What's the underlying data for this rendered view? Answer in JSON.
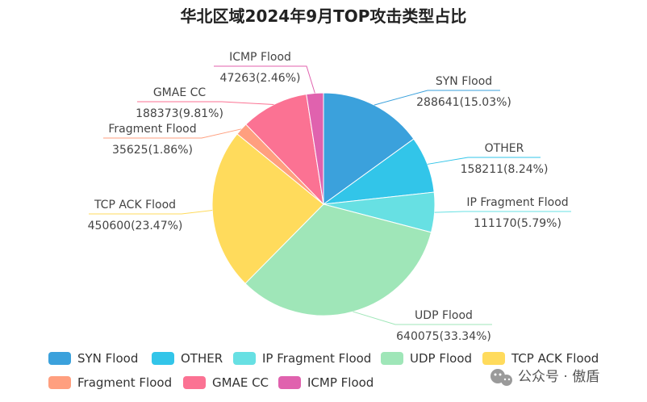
{
  "chart_data": {
    "type": "pie",
    "title": "华北区域2024年9月TOP攻击类型占比",
    "slices": [
      {
        "name": "SYN Flood",
        "value": 288641,
        "label": "288641(15.03%)",
        "color": "#3ba1dc"
      },
      {
        "name": "OTHER",
        "value": 158211,
        "label": "158211(8.24%)",
        "color": "#32c5e9"
      },
      {
        "name": "IP Fragment Flood",
        "value": 111170,
        "label": "111170(5.79%)",
        "color": "#67e0e3"
      },
      {
        "name": "UDP Flood",
        "value": 640075,
        "label": "640075(33.34%)",
        "color": "#9fe6b8"
      },
      {
        "name": "TCP ACK Flood",
        "value": 450600,
        "label": "450600(23.47%)",
        "color": "#ffdb5c"
      },
      {
        "name": "Fragment Flood",
        "value": 35625,
        "label": "35625(1.86%)",
        "color": "#ff9f7f"
      },
      {
        "name": "GMAE CC",
        "value": 188373,
        "label": "188373(9.81%)",
        "color": "#fb7293"
      },
      {
        "name": "ICMP Flood",
        "value": 47263,
        "label": "47263(2.46%)",
        "color": "#e062ae"
      }
    ],
    "legend_position": "bottom"
  },
  "watermark": {
    "text": "公众号 · 傲盾",
    "icon": "wechat-icon"
  }
}
